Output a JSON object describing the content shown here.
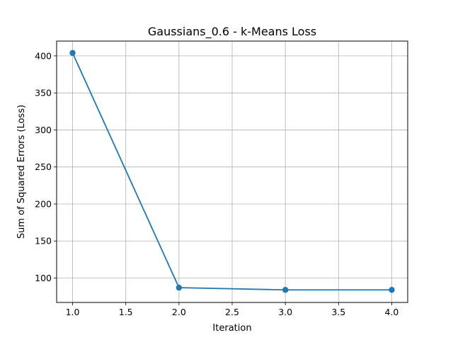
{
  "chart_data": {
    "type": "line",
    "title": "Gaussians_0.6 - k-Means Loss",
    "xlabel": "Iteration",
    "ylabel": "Sum of Squared Errors (Loss)",
    "xlim": [
      0.85,
      4.15
    ],
    "ylim": [
      67,
      420
    ],
    "x_ticks": [
      "1.0",
      "1.5",
      "2.0",
      "2.5",
      "3.0",
      "3.5",
      "4.0"
    ],
    "y_ticks": [
      "100",
      "150",
      "200",
      "250",
      "300",
      "350",
      "400"
    ],
    "grid": true,
    "marker": "circle",
    "series": [
      {
        "color": "#1f77b4",
        "x": [
          1,
          2,
          3,
          4
        ],
        "y": [
          404,
          87,
          84,
          84
        ]
      }
    ]
  }
}
